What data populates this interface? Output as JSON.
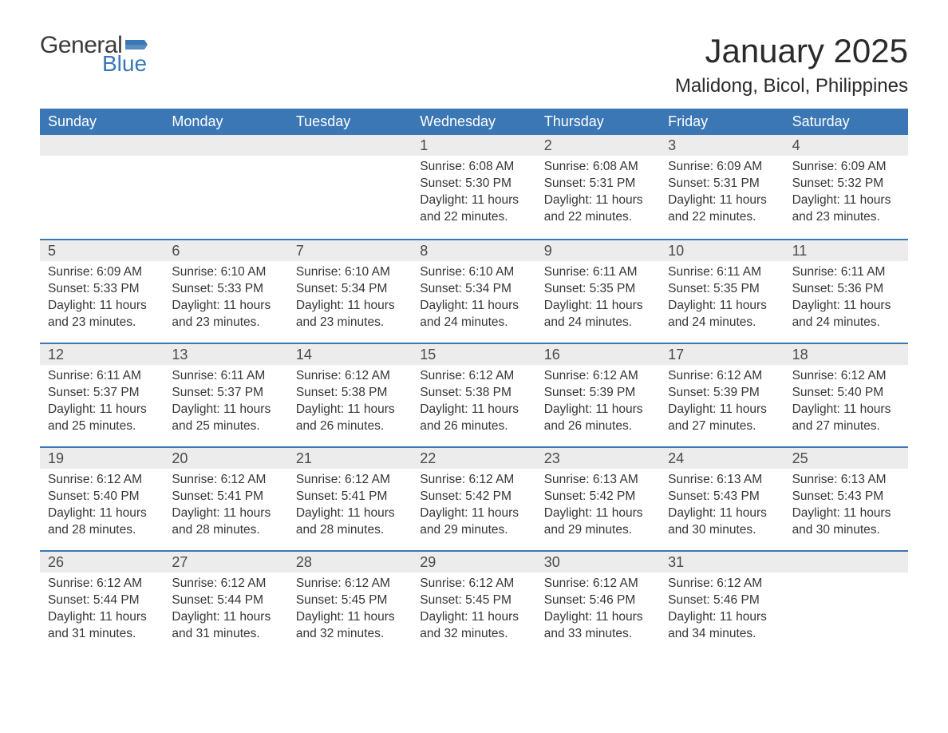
{
  "logo": {
    "text_general": "General",
    "text_blue": "Blue",
    "flag_color": "#3b77b5",
    "text_dark": "#3b3b3b"
  },
  "title": "January 2025",
  "location": "Malidong, Bicol, Philippines",
  "colors": {
    "header_bg": "#3b77b5",
    "header_text": "#ffffff",
    "daynum_bg": "#ececec",
    "daynum_text": "#4a4a4a",
    "body_text": "#363636",
    "row_border": "#3b77b5",
    "page_bg": "#ffffff"
  },
  "fonts": {
    "title_size": 42,
    "location_size": 24,
    "weekday_size": 18,
    "daynum_size": 18,
    "body_size": 15.5
  },
  "weekdays": [
    "Sunday",
    "Monday",
    "Tuesday",
    "Wednesday",
    "Thursday",
    "Friday",
    "Saturday"
  ],
  "sunrise_label": "Sunrise",
  "sunset_label": "Sunset",
  "daylight_label": "Daylight",
  "daylight_hours": 11,
  "weeks": [
    [
      null,
      null,
      null,
      {
        "n": 1,
        "sunrise": "6:08 AM",
        "sunset": "5:30 PM",
        "mins": 22
      },
      {
        "n": 2,
        "sunrise": "6:08 AM",
        "sunset": "5:31 PM",
        "mins": 22
      },
      {
        "n": 3,
        "sunrise": "6:09 AM",
        "sunset": "5:31 PM",
        "mins": 22
      },
      {
        "n": 4,
        "sunrise": "6:09 AM",
        "sunset": "5:32 PM",
        "mins": 23
      }
    ],
    [
      {
        "n": 5,
        "sunrise": "6:09 AM",
        "sunset": "5:33 PM",
        "mins": 23
      },
      {
        "n": 6,
        "sunrise": "6:10 AM",
        "sunset": "5:33 PM",
        "mins": 23
      },
      {
        "n": 7,
        "sunrise": "6:10 AM",
        "sunset": "5:34 PM",
        "mins": 23
      },
      {
        "n": 8,
        "sunrise": "6:10 AM",
        "sunset": "5:34 PM",
        "mins": 24
      },
      {
        "n": 9,
        "sunrise": "6:11 AM",
        "sunset": "5:35 PM",
        "mins": 24
      },
      {
        "n": 10,
        "sunrise": "6:11 AM",
        "sunset": "5:35 PM",
        "mins": 24
      },
      {
        "n": 11,
        "sunrise": "6:11 AM",
        "sunset": "5:36 PM",
        "mins": 24
      }
    ],
    [
      {
        "n": 12,
        "sunrise": "6:11 AM",
        "sunset": "5:37 PM",
        "mins": 25
      },
      {
        "n": 13,
        "sunrise": "6:11 AM",
        "sunset": "5:37 PM",
        "mins": 25
      },
      {
        "n": 14,
        "sunrise": "6:12 AM",
        "sunset": "5:38 PM",
        "mins": 26
      },
      {
        "n": 15,
        "sunrise": "6:12 AM",
        "sunset": "5:38 PM",
        "mins": 26
      },
      {
        "n": 16,
        "sunrise": "6:12 AM",
        "sunset": "5:39 PM",
        "mins": 26
      },
      {
        "n": 17,
        "sunrise": "6:12 AM",
        "sunset": "5:39 PM",
        "mins": 27
      },
      {
        "n": 18,
        "sunrise": "6:12 AM",
        "sunset": "5:40 PM",
        "mins": 27
      }
    ],
    [
      {
        "n": 19,
        "sunrise": "6:12 AM",
        "sunset": "5:40 PM",
        "mins": 28
      },
      {
        "n": 20,
        "sunrise": "6:12 AM",
        "sunset": "5:41 PM",
        "mins": 28
      },
      {
        "n": 21,
        "sunrise": "6:12 AM",
        "sunset": "5:41 PM",
        "mins": 28
      },
      {
        "n": 22,
        "sunrise": "6:12 AM",
        "sunset": "5:42 PM",
        "mins": 29
      },
      {
        "n": 23,
        "sunrise": "6:13 AM",
        "sunset": "5:42 PM",
        "mins": 29
      },
      {
        "n": 24,
        "sunrise": "6:13 AM",
        "sunset": "5:43 PM",
        "mins": 30
      },
      {
        "n": 25,
        "sunrise": "6:13 AM",
        "sunset": "5:43 PM",
        "mins": 30
      }
    ],
    [
      {
        "n": 26,
        "sunrise": "6:12 AM",
        "sunset": "5:44 PM",
        "mins": 31
      },
      {
        "n": 27,
        "sunrise": "6:12 AM",
        "sunset": "5:44 PM",
        "mins": 31
      },
      {
        "n": 28,
        "sunrise": "6:12 AM",
        "sunset": "5:45 PM",
        "mins": 32
      },
      {
        "n": 29,
        "sunrise": "6:12 AM",
        "sunset": "5:45 PM",
        "mins": 32
      },
      {
        "n": 30,
        "sunrise": "6:12 AM",
        "sunset": "5:46 PM",
        "mins": 33
      },
      {
        "n": 31,
        "sunrise": "6:12 AM",
        "sunset": "5:46 PM",
        "mins": 34
      },
      null
    ]
  ]
}
